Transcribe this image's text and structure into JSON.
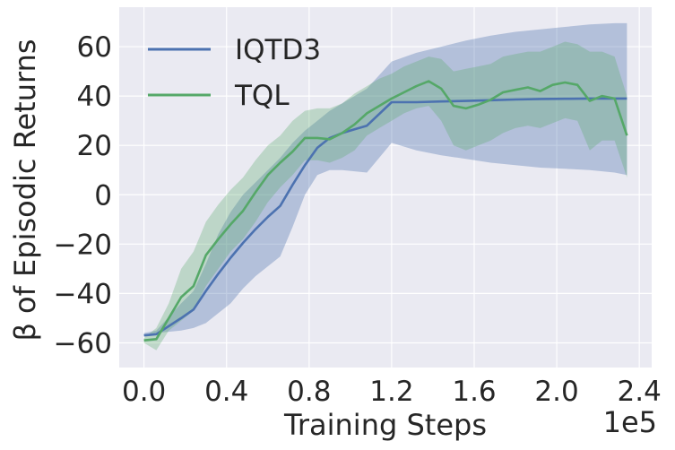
{
  "chart_data": {
    "type": "line",
    "title": "",
    "xlabel": "Training Steps",
    "ylabel": "β of Episodic Returns",
    "x_offset_label": "1e5",
    "xlim": [
      -0.12,
      2.46
    ],
    "ylim": [
      -70,
      76
    ],
    "x_ticks": [
      0.0,
      0.4,
      0.8,
      1.2,
      1.6,
      2.0,
      2.4
    ],
    "x_tick_labels": [
      "0.0",
      "0.4",
      "0.8",
      "1.2",
      "1.6",
      "2.0",
      "2.4"
    ],
    "y_ticks": [
      -60,
      -40,
      -20,
      0,
      20,
      40,
      60
    ],
    "y_tick_labels": [
      "−60",
      "−40",
      "−20",
      "0",
      "20",
      "40",
      "60"
    ],
    "grid": true,
    "legend_position": "top-left",
    "series": [
      {
        "name": "IQTD3",
        "color": "#4c72b0",
        "band_opacity": 0.35,
        "x": [
          0.0,
          0.06,
          0.18,
          0.24,
          0.3,
          0.36,
          0.42,
          0.48,
          0.54,
          0.6,
          0.66,
          0.72,
          0.78,
          0.84,
          0.9,
          0.96,
          1.02,
          1.08,
          1.2,
          1.32,
          1.44,
          1.56,
          1.68,
          1.8,
          1.92,
          2.04,
          2.16,
          2.28,
          2.34
        ],
        "mean": [
          -57,
          -56.5,
          -50,
          -46.5,
          -39,
          -32,
          -25.5,
          -19.5,
          -14,
          -9,
          -4.5,
          4,
          12,
          19,
          23,
          25,
          26.5,
          28,
          37.5,
          37.5,
          37.8,
          38,
          38.3,
          38.6,
          38.8,
          38.9,
          39,
          39,
          39
        ],
        "lower": [
          -57,
          -56,
          -55,
          -54,
          -52,
          -48,
          -44,
          -38,
          -33,
          -29,
          -25,
          -13,
          0,
          8,
          10,
          10,
          9.5,
          9,
          21,
          18,
          16,
          14.5,
          13,
          12,
          11,
          10.5,
          10,
          9,
          8
        ],
        "upper": [
          -56,
          -55,
          -44,
          -39,
          -28,
          -16,
          -7,
          0,
          5,
          10,
          15,
          21,
          26,
          30,
          34,
          37,
          40,
          43,
          54,
          57.5,
          60,
          62.5,
          64.5,
          66,
          67,
          68,
          69,
          69.5,
          69.5
        ]
      },
      {
        "name": "TQL",
        "color": "#55a868",
        "band_opacity": 0.3,
        "x": [
          0.0,
          0.06,
          0.12,
          0.18,
          0.24,
          0.3,
          0.36,
          0.42,
          0.48,
          0.54,
          0.6,
          0.66,
          0.72,
          0.78,
          0.84,
          0.9,
          0.96,
          1.02,
          1.08,
          1.14,
          1.2,
          1.26,
          1.32,
          1.38,
          1.44,
          1.5,
          1.56,
          1.62,
          1.68,
          1.74,
          1.8,
          1.86,
          1.92,
          1.98,
          2.04,
          2.1,
          2.16,
          2.22,
          2.28,
          2.34
        ],
        "mean": [
          -59,
          -58.5,
          -50,
          -41.5,
          -37,
          -24.5,
          -18,
          -12,
          -6.5,
          1,
          8,
          13,
          17.5,
          23,
          23,
          22.5,
          25,
          28.5,
          33,
          36,
          39,
          41.5,
          44,
          46,
          43,
          36,
          35,
          36.5,
          38.5,
          41.5,
          42.5,
          43.5,
          42,
          44.5,
          45.5,
          44.5,
          38,
          40,
          39,
          24
        ],
        "lower": [
          -60,
          -63,
          -55,
          -51,
          -47,
          -37,
          -30,
          -23,
          -18,
          -11,
          -3,
          3,
          8,
          14,
          14,
          13,
          15,
          18,
          24,
          27,
          30,
          33,
          35,
          36,
          30,
          20,
          18,
          20,
          22,
          25,
          27,
          28,
          27,
          29,
          31,
          30,
          18,
          22,
          22,
          7
        ],
        "upper": [
          -58,
          -54,
          -44,
          -30,
          -23,
          -11,
          -4,
          2,
          7,
          14,
          20,
          24,
          30,
          34,
          35,
          35,
          37,
          41,
          44,
          47,
          49,
          52,
          54,
          56,
          55,
          50,
          51,
          52,
          53,
          56,
          57,
          58,
          58,
          60,
          62,
          61,
          58,
          58,
          56,
          40
        ]
      }
    ]
  }
}
